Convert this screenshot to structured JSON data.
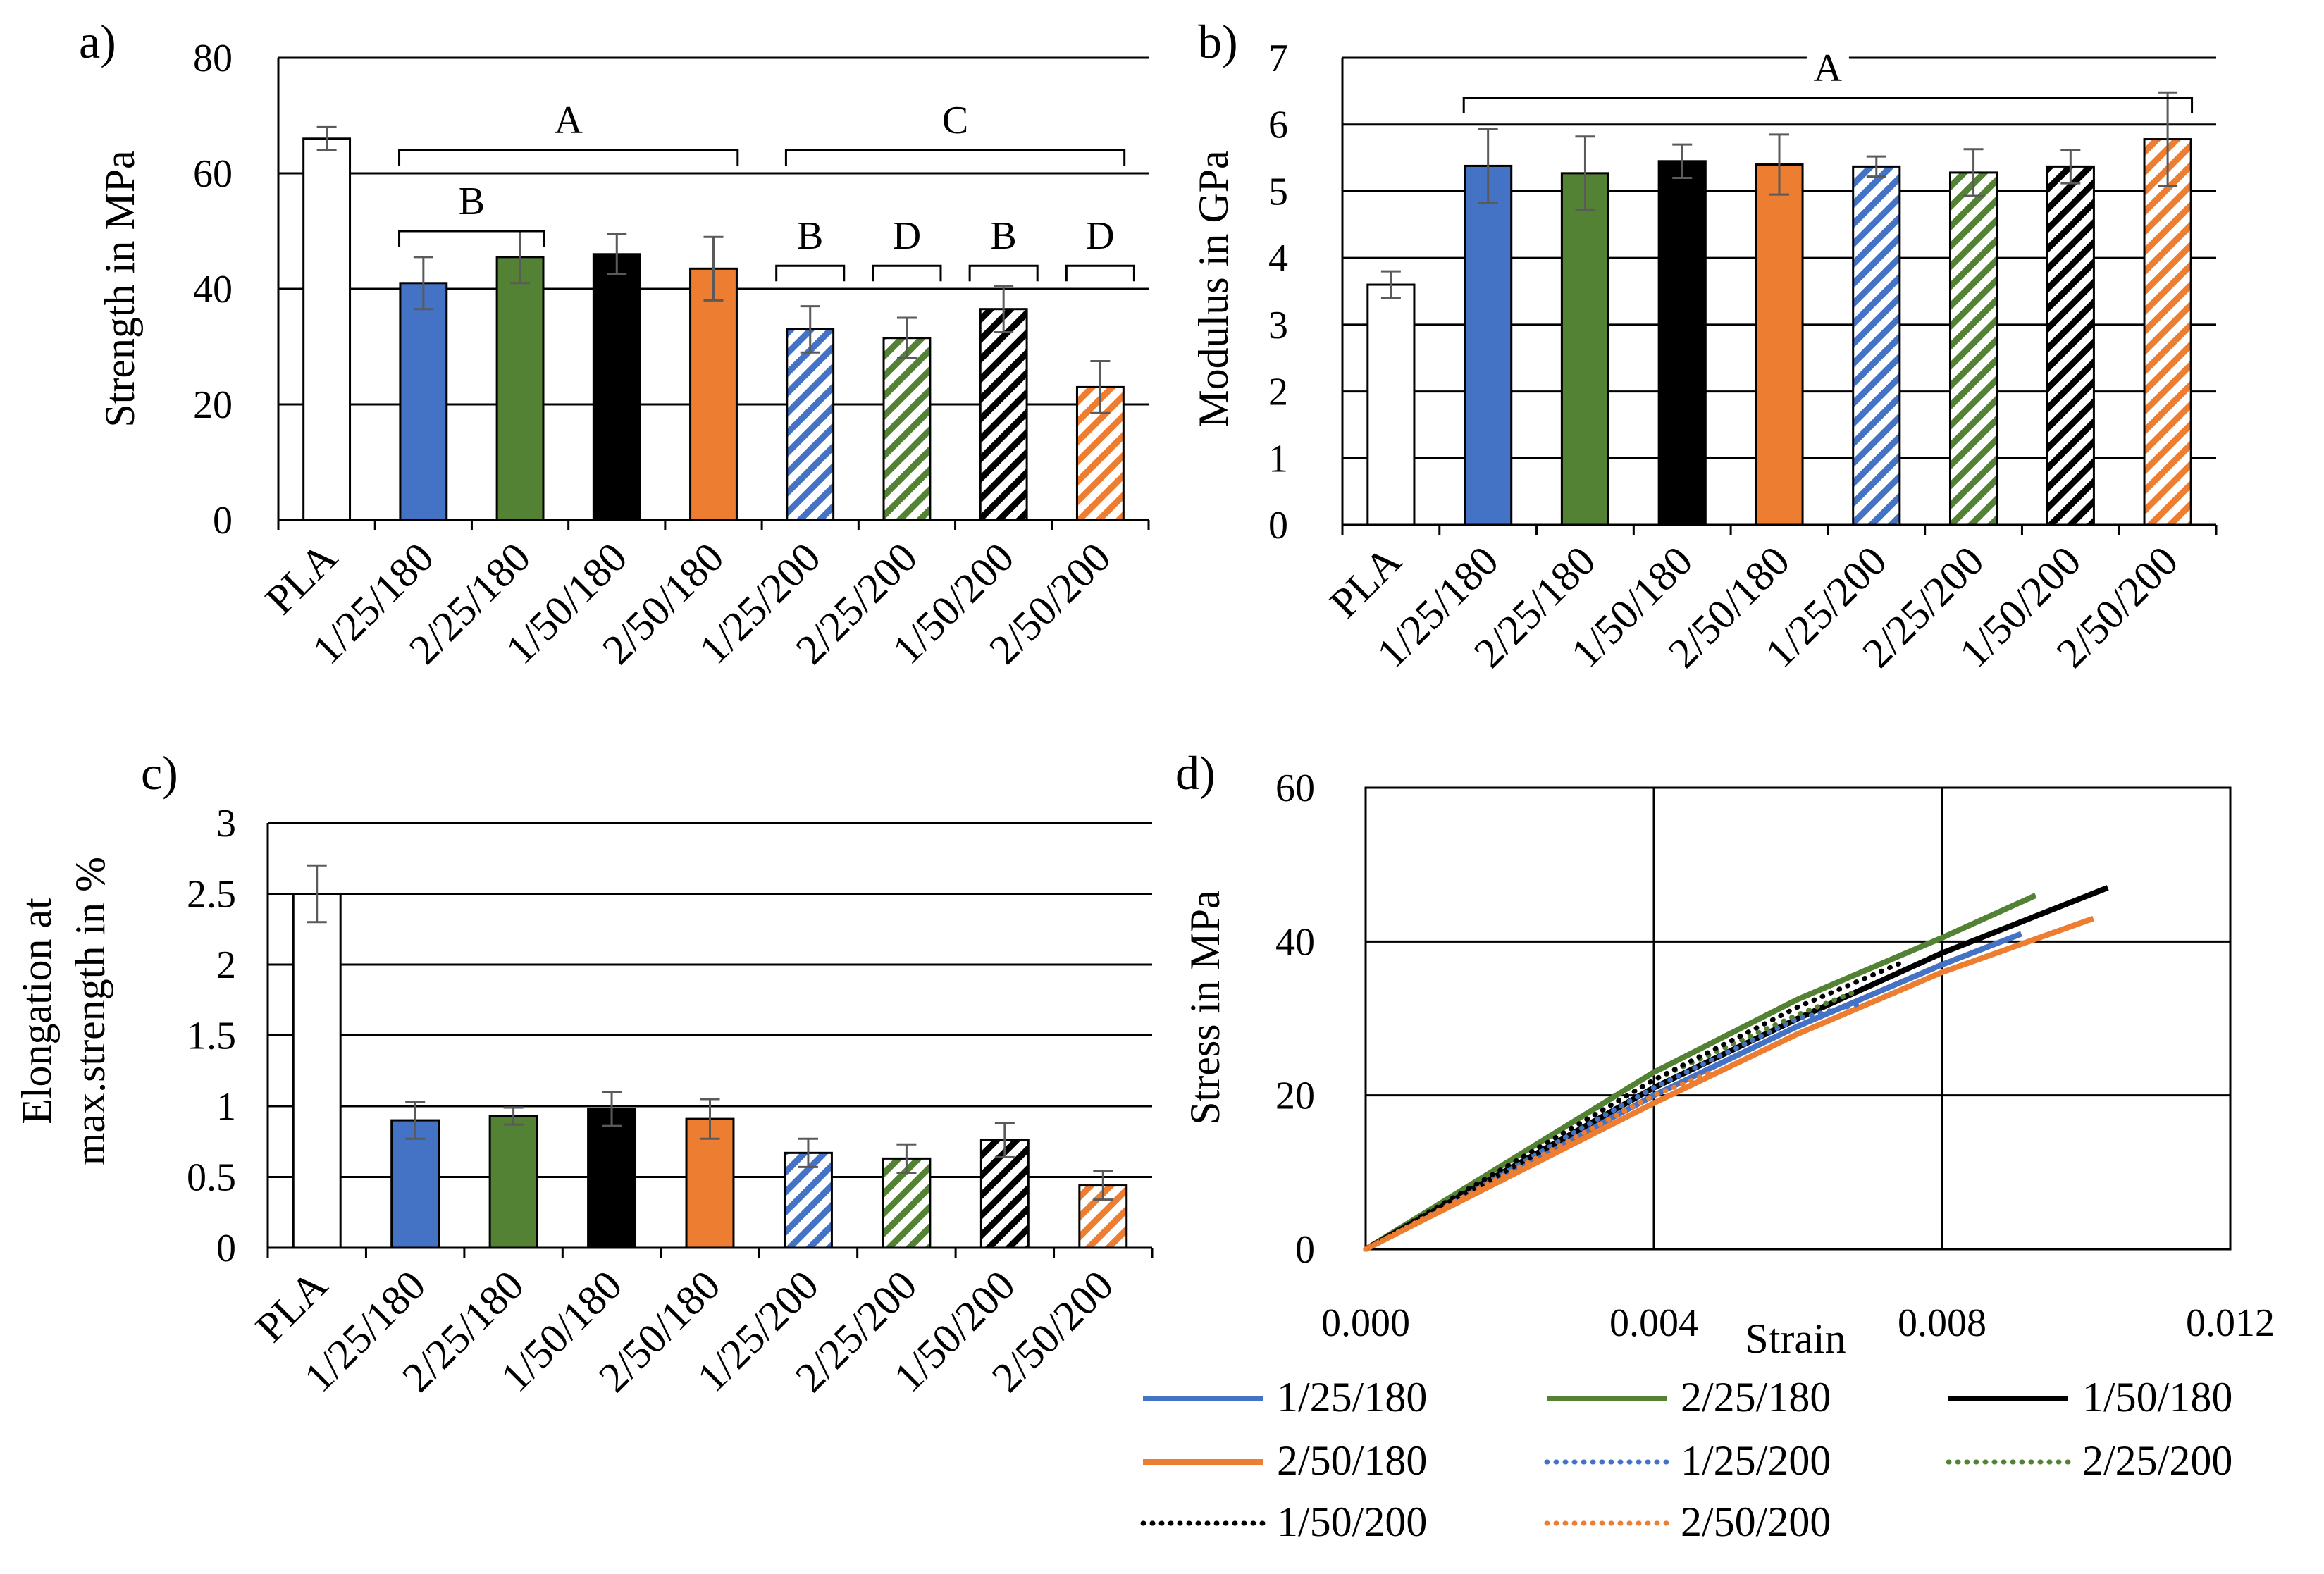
{
  "colors": {
    "PLA": "#ffffff",
    "1/25": "#4472c4",
    "2/25": "#548235",
    "1/50": "#000000",
    "2/50": "#ed7d31",
    "errorbar": "#5a5a5a"
  },
  "chart_data": [
    {
      "panel": "a)",
      "type": "bar",
      "ylabel": "Strength in MPa",
      "ylim": [
        0,
        80
      ],
      "yticks": [
        "0",
        "20",
        "40",
        "60",
        "80"
      ],
      "categories": [
        "PLA",
        "1/25/180",
        "2/25/180",
        "1/50/180",
        "2/50/180",
        "1/25/200",
        "2/25/200",
        "1/50/200",
        "2/50/200"
      ],
      "values": [
        66,
        41,
        45.5,
        46,
        43.5,
        33,
        31.5,
        36.5,
        23
      ],
      "errors": [
        2,
        4.5,
        4.5,
        3.5,
        5.5,
        4,
        3.5,
        4,
        4.5
      ],
      "groups": [
        {
          "label": "A",
          "from": 1,
          "to": 4,
          "level": 64
        },
        {
          "label": "C",
          "from": 5,
          "to": 8,
          "level": 64
        },
        {
          "label": "B",
          "from": 1,
          "to": 2,
          "level": 50
        },
        {
          "label": "B",
          "from": 5,
          "to": 5,
          "level": 44
        },
        {
          "label": "D",
          "from": 6,
          "to": 6,
          "level": 44
        },
        {
          "label": "B",
          "from": 7,
          "to": 7,
          "level": 44
        },
        {
          "label": "D",
          "from": 8,
          "to": 8,
          "level": 44
        }
      ]
    },
    {
      "panel": "b)",
      "type": "bar",
      "ylabel": "Modulus in GPa",
      "ylim": [
        0,
        7
      ],
      "yticks": [
        "0",
        "1",
        "2",
        "3",
        "4",
        "5",
        "6",
        "7"
      ],
      "categories": [
        "PLA",
        "1/25/180",
        "2/25/180",
        "1/50/180",
        "2/50/180",
        "1/25/200",
        "2/25/200",
        "1/50/200",
        "2/50/200"
      ],
      "values": [
        3.6,
        5.38,
        5.27,
        5.45,
        5.4,
        5.37,
        5.28,
        5.37,
        5.78
      ],
      "errors": [
        0.2,
        0.55,
        0.55,
        0.25,
        0.45,
        0.15,
        0.35,
        0.25,
        0.7
      ],
      "groups": [
        {
          "label": "A",
          "from": 1,
          "to": 8,
          "level": 6.4
        }
      ]
    },
    {
      "panel": "c)",
      "type": "bar",
      "ylabel_lines": [
        "Elongation at",
        "max.strength in %"
      ],
      "ylim": [
        0,
        3
      ],
      "yticks": [
        "0",
        "0.5",
        "1",
        "1.5",
        "2",
        "2.5",
        "3"
      ],
      "categories": [
        "PLA",
        "1/25/180",
        "2/25/180",
        "1/50/180",
        "2/50/180",
        "1/25/200",
        "2/25/200",
        "1/50/200",
        "2/50/200"
      ],
      "values": [
        2.5,
        0.9,
        0.93,
        0.98,
        0.91,
        0.67,
        0.63,
        0.76,
        0.44
      ],
      "errors": [
        0.2,
        0.13,
        0.06,
        0.12,
        0.14,
        0.1,
        0.1,
        0.12,
        0.1
      ]
    },
    {
      "panel": "d)",
      "type": "line",
      "xlabel": "Strain",
      "ylabel": "Stress in MPa",
      "xlim": [
        0,
        0.012
      ],
      "ylim": [
        0,
        60
      ],
      "xticks": [
        "0.000",
        "0.004",
        "0.008",
        "0.012"
      ],
      "yticks": [
        "0",
        "20",
        "40",
        "60"
      ],
      "series": [
        {
          "name": "1/25/180",
          "color": "#4472c4",
          "dash": "solid",
          "x": [
            0,
            0.002,
            0.004,
            0.006,
            0.008,
            0.0091
          ],
          "y": [
            0,
            10,
            20,
            29,
            37,
            41
          ]
        },
        {
          "name": "2/25/180",
          "color": "#548235",
          "dash": "solid",
          "x": [
            0,
            0.002,
            0.004,
            0.006,
            0.008,
            0.0093
          ],
          "y": [
            0,
            11.5,
            23,
            32.5,
            40.5,
            46
          ]
        },
        {
          "name": "1/50/180",
          "color": "#000000",
          "dash": "solid",
          "x": [
            0,
            0.002,
            0.004,
            0.006,
            0.008,
            0.0103
          ],
          "y": [
            0,
            10.5,
            21,
            30,
            38.5,
            47
          ]
        },
        {
          "name": "2/50/180",
          "color": "#ed7d31",
          "dash": "solid",
          "x": [
            0,
            0.002,
            0.004,
            0.006,
            0.008,
            0.0101
          ],
          "y": [
            0,
            9.5,
            19,
            28,
            36,
            43
          ]
        },
        {
          "name": "1/25/200",
          "color": "#4472c4",
          "dash": "dot",
          "x": [
            0,
            0.002,
            0.004,
            0.006,
            0.0069
          ],
          "y": [
            0,
            10.5,
            21,
            30,
            32
          ]
        },
        {
          "name": "2/25/200",
          "color": "#548235",
          "dash": "dot",
          "x": [
            0,
            0.002,
            0.004,
            0.006,
            0.0068
          ],
          "y": [
            0,
            11,
            22,
            30.5,
            33.5
          ]
        },
        {
          "name": "1/50/200",
          "color": "#000000",
          "dash": "dot",
          "x": [
            0,
            0.002,
            0.004,
            0.006,
            0.0075
          ],
          "y": [
            0,
            11,
            22,
            31.5,
            37.5
          ]
        },
        {
          "name": "2/50/200",
          "color": "#ed7d31",
          "dash": "dot",
          "x": [
            0,
            0.002,
            0.004,
            0.0048
          ],
          "y": [
            0,
            10,
            20,
            23
          ]
        }
      ]
    }
  ]
}
